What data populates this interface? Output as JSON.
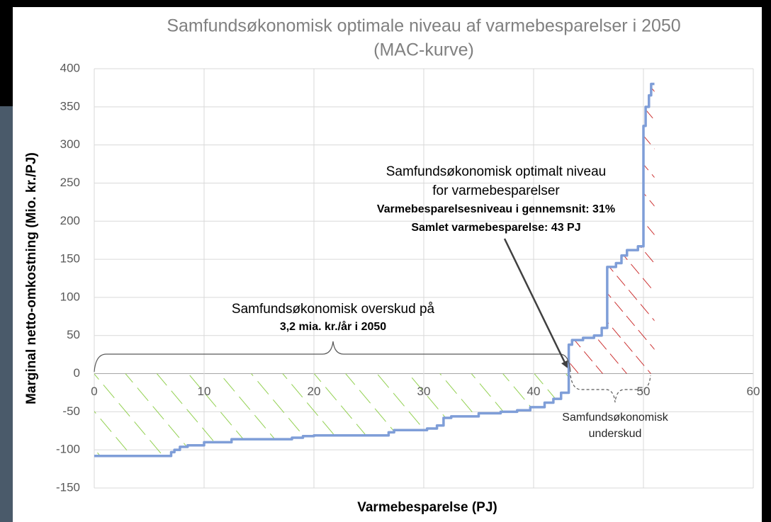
{
  "chart_data": {
    "type": "line",
    "title": [
      "Samfundsøkonomisk optimale niveau af varmebesparelser i 2050",
      "(MAC-kurve)"
    ],
    "x_label": "Varmebesparelse (PJ)",
    "y_label": "Marginal netto-omkostning (Mio. kr./PJ)",
    "xlim": [
      0,
      60
    ],
    "xticks": [
      0,
      10,
      20,
      30,
      40,
      50,
      60
    ],
    "ylim": [
      -150,
      400
    ],
    "yticks": [
      -150,
      -100,
      -50,
      0,
      50,
      100,
      150,
      200,
      250,
      300,
      350,
      400
    ],
    "grid": true,
    "series": [
      {
        "color": "#7f9ed8",
        "x": [
          0,
          7,
          7,
          7.3,
          7.3,
          7.8,
          7.8,
          8.5,
          8.5,
          10,
          10,
          12.5,
          12.5,
          18,
          18,
          19,
          19,
          20,
          20,
          26.8,
          26.8,
          27.3,
          27.3,
          30.3,
          30.3,
          31.2,
          31.2,
          31.8,
          31.8,
          32.5,
          32.5,
          35,
          35,
          37,
          37,
          38.5,
          38.5,
          39.7,
          39.7,
          41,
          41,
          41.8,
          41.8,
          42.5,
          42.5,
          43.2,
          43.2,
          43.5,
          43.5,
          44.5,
          44.5,
          45.5,
          45.5,
          46.2,
          46.2,
          46.7,
          46.7,
          47.5,
          47.5,
          48,
          48,
          48.5,
          48.5,
          49.5,
          49.5,
          50,
          50,
          50.2,
          50.2,
          50.5,
          50.5,
          50.7,
          50.7,
          51
        ],
        "values": [
          -108,
          -108,
          -103,
          -103,
          -100,
          -100,
          -96,
          -96,
          -94,
          -94,
          -90,
          -90,
          -86,
          -86,
          -84,
          -84,
          -82,
          -82,
          -81,
          -81,
          -77,
          -77,
          -74,
          -74,
          -72,
          -72,
          -68,
          -68,
          -58,
          -58,
          -56,
          -56,
          -52,
          -52,
          -50,
          -50,
          -48,
          -48,
          -44,
          -44,
          -38,
          -38,
          -33,
          -33,
          -25,
          -25,
          38,
          38,
          44,
          44,
          47,
          47,
          50,
          50,
          60,
          60,
          140,
          140,
          145,
          145,
          155,
          155,
          162,
          162,
          167,
          167,
          325,
          325,
          350,
          350,
          365,
          365,
          380,
          380
        ]
      }
    ],
    "annotations": [
      [
        "Samfundsøkonomisk  overskud på",
        "3,2 mia. kr./år i 2050"
      ],
      [
        "Samfundsøkonomisk  optimalt niveau",
        "for varmebesparelser",
        "Varmebesparelsesniveau i gennemsnit: 31%",
        "Samlet varmebesparelse: 43 PJ"
      ],
      [
        "Samfundsøkonomisk",
        "underskud"
      ]
    ]
  }
}
